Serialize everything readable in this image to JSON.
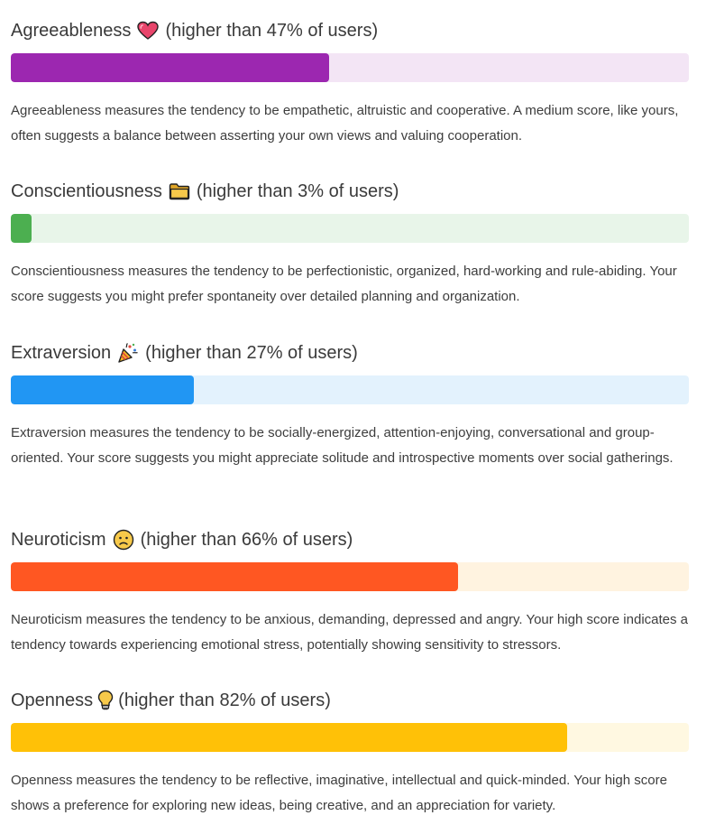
{
  "traits": [
    {
      "name": "Agreeableness",
      "icon": "heart-icon",
      "percentile_text": "(higher than 47% of users)",
      "bar_fraction": 0.469,
      "bar_color": "#9c27b0",
      "track_color": "#f3e5f5",
      "description": "Agreeableness measures the tendency to be empathetic, altruistic and cooperative. A medium score, like yours, often suggests a balance between asserting your own views and valuing cooperation."
    },
    {
      "name": "Conscientiousness",
      "icon": "folder-icon",
      "percentile_text": "(higher than 3% of users)",
      "bar_fraction": 0.031,
      "bar_color": "#4caf50",
      "track_color": "#e8f5e9",
      "description": "Conscientiousness measures the tendency to be perfectionistic, organized, hard-working and rule-abiding. Your score suggests you might prefer spontaneity over detailed planning and organization."
    },
    {
      "name": "Extraversion",
      "icon": "party-popper-icon",
      "percentile_text": "(higher than 27% of users)",
      "bar_fraction": 0.27,
      "bar_color": "#2196f3",
      "track_color": "#e3f2fd",
      "description": "Extraversion measures the tendency to be socially-energized, attention-enjoying, conversational and group-oriented. Your score suggests you might appreciate solitude and introspective moments over social gatherings."
    },
    {
      "name": "Neuroticism",
      "icon": "worried-face-icon",
      "percentile_text": "(higher than 66% of users)",
      "bar_fraction": 0.66,
      "bar_color": "#ff5722",
      "track_color": "#fff3e0",
      "description": "Neuroticism measures the tendency to be anxious, demanding, depressed and angry. Your high score indicates a tendency towards experiencing emotional stress, potentially showing sensitivity to stressors."
    },
    {
      "name": "Openness",
      "icon": "lightbulb-icon",
      "percentile_text": "(higher than 82% of users)",
      "bar_fraction": 0.82,
      "bar_color": "#ffc107",
      "track_color": "#fff8e1",
      "description": "Openness measures the tendency to be reflective, imaginative, intellectual and quick-minded. Your high score shows a preference for exploring new ideas, being creative, and an appreciation for variety."
    }
  ]
}
